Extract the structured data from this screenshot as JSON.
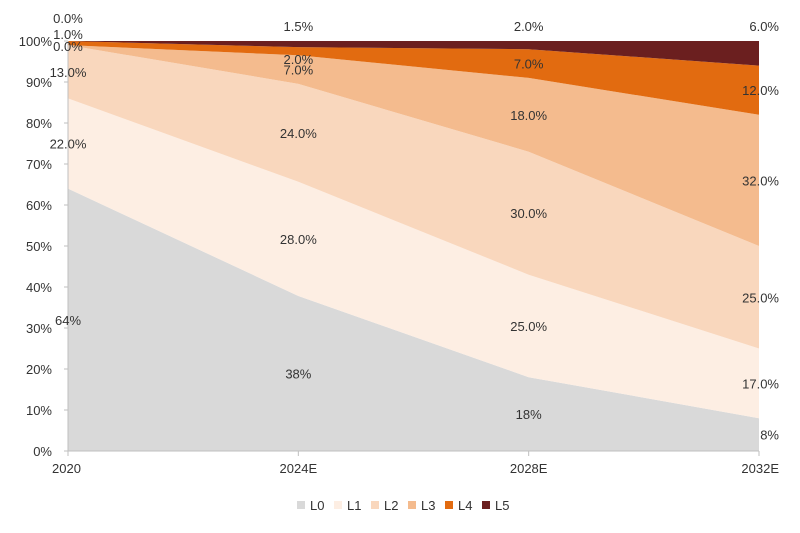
{
  "chart_data": {
    "type": "area",
    "stacked": true,
    "percent": true,
    "title": "",
    "xlabel": "",
    "ylabel": "",
    "categories": [
      "2020",
      "2024E",
      "2028E",
      "2032E"
    ],
    "ylim": [
      0,
      100
    ],
    "yticks": [
      "0%",
      "10%",
      "20%",
      "30%",
      "40%",
      "50%",
      "60%",
      "70%",
      "80%",
      "90%",
      "100%"
    ],
    "grid": false,
    "legend_position": "bottom",
    "series": [
      {
        "name": "L0",
        "color": "#d9d9d9",
        "values": [
          64,
          38,
          18,
          8
        ],
        "labels": [
          "64%",
          "38%",
          "18%",
          "8%"
        ]
      },
      {
        "name": "L1",
        "color": "#fdeee3",
        "values": [
          22,
          28,
          25,
          17
        ],
        "labels": [
          "22.0%",
          "28.0%",
          "25.0%",
          "17.0%"
        ]
      },
      {
        "name": "L2",
        "color": "#f9d7bd",
        "values": [
          13,
          24,
          30,
          25
        ],
        "labels": [
          "13.0%",
          "24.0%",
          "30.0%",
          "25.0%"
        ]
      },
      {
        "name": "L3",
        "color": "#f4bb8e",
        "values": [
          0,
          7,
          18,
          32
        ],
        "labels": [
          "0.0%",
          "7.0%",
          "18.0%",
          "32.0%"
        ]
      },
      {
        "name": "L4",
        "color": "#e26b10",
        "values": [
          1,
          2,
          7,
          12
        ],
        "labels": [
          "1.0%",
          "2.0%",
          "7.0%",
          "12.0%"
        ]
      },
      {
        "name": "L5",
        "color": "#6b1f1f",
        "values": [
          0,
          1.5,
          2,
          6
        ],
        "labels": [
          "0.0%",
          "1.5%",
          "2.0%",
          "6.0%"
        ]
      }
    ]
  }
}
